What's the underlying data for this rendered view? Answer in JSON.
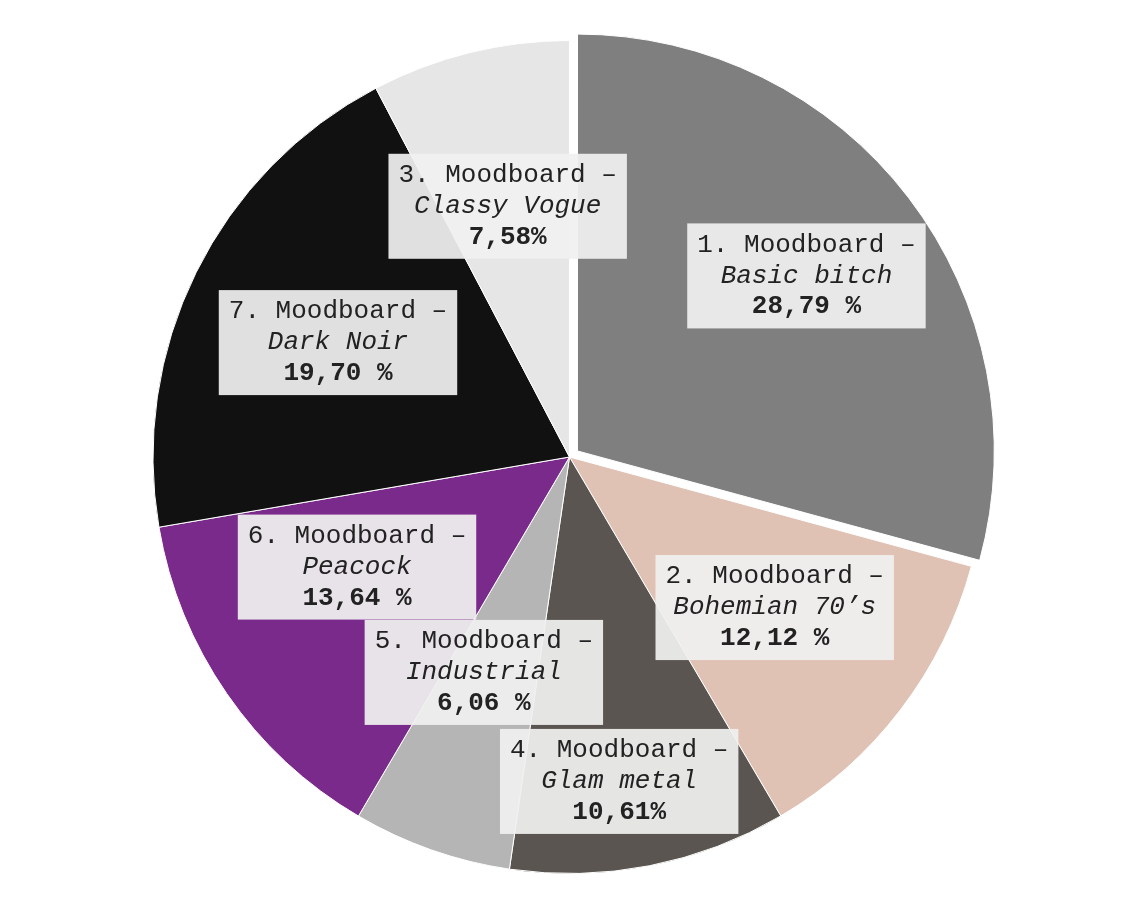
{
  "chart_data": {
    "type": "pie",
    "categories": [
      "1. Moodboard – Basic bitch",
      "2. Moodboard – Bohemian 70’s",
      "4. Moodboard – Glam metal",
      "5. Moodboard – Industrial",
      "6. Moodboard – Peacock",
      "7. Moodboard – Dark Noir",
      "3. Moodboard – Classy Vogue"
    ],
    "values": [
      28.79,
      12.12,
      10.61,
      6.06,
      13.64,
      19.7,
      7.58
    ],
    "value_labels": [
      "28,79 %",
      "12,12 %",
      "10,61%",
      "6,06 %",
      "13,64 %",
      "19,70 %",
      "7,58%"
    ],
    "colors": [
      "#7f7f7f",
      "#e0c2b4",
      "#5a5550",
      "#b5b5b5",
      "#7a2a8a",
      "#111111",
      "#e6e6e6"
    ],
    "data_labels": true
  }
}
